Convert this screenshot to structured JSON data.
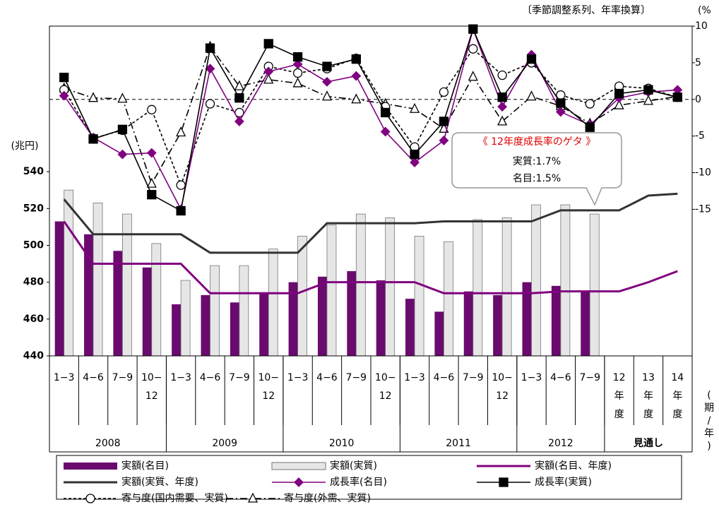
{
  "chart_data": {
    "type": "combo",
    "title": "〔季節調整系列、年率換算〕",
    "y_label": "(兆円)",
    "y2_label": "(%",
    "x_label": "(期/年)",
    "categories": [
      "1−3",
      "4−6",
      "7−9",
      "10−12",
      "1−3",
      "4−6",
      "7−9",
      "10−12",
      "1−3",
      "4−6",
      "7−9",
      "10−12",
      "1−3",
      "4−6",
      "7−9",
      "10−12",
      "1−3",
      "4−6",
      "7−9",
      "12年度",
      "13年度",
      "14年度"
    ],
    "groups": [
      {
        "label": "2008",
        "size": 4
      },
      {
        "label": "2009",
        "size": 4
      },
      {
        "label": "2010",
        "size": 4
      },
      {
        "label": "2011",
        "size": 4
      },
      {
        "label": "2012",
        "size": 3
      },
      {
        "label": "見通し",
        "size": 3
      }
    ],
    "ylim": [
      440,
      619
    ],
    "yticks": [
      440,
      460,
      480,
      500,
      520,
      540
    ],
    "y2lim": [
      -35,
      10
    ],
    "y2ticks": [
      10,
      5,
      0,
      -5,
      -10,
      -15
    ],
    "series": [
      {
        "name": "実額(名目)",
        "kind": "bar",
        "color": "#6a0a6e",
        "values": [
          513,
          506,
          497,
          488,
          468,
          473,
          469,
          474,
          480,
          483,
          486,
          481,
          471,
          464,
          475,
          473,
          480,
          478,
          475,
          null,
          null,
          null
        ]
      },
      {
        "name": "実額(実質)",
        "kind": "bar",
        "color": "#e6e6e6",
        "values": [
          530,
          523,
          517,
          501,
          481,
          489,
          489,
          498,
          505,
          511,
          517,
          515,
          505,
          502,
          514,
          515,
          522,
          522,
          517,
          null,
          null,
          null
        ]
      },
      {
        "name": "実額(名目、年度)",
        "kind": "line",
        "color": "#800080",
        "values": [
          513,
          490,
          490,
          490,
          490,
          474,
          474,
          474,
          474,
          480,
          480,
          480,
          480,
          474,
          474,
          474,
          474,
          475,
          475,
          475,
          480,
          486
        ]
      },
      {
        "name": "実額(実質、年度)",
        "kind": "line",
        "color": "#333333",
        "values": [
          525,
          506,
          506,
          506,
          506,
          496,
          496,
          496,
          496,
          512,
          512,
          512,
          512,
          513,
          513,
          513,
          513,
          519,
          519,
          519,
          527,
          528
        ]
      },
      {
        "name": "成長率(名目)",
        "kind": "line",
        "axis": "y2",
        "marker": "diamond",
        "color": "#800080",
        "values": [
          0.5,
          -5.2,
          -7.5,
          -7.3,
          -15,
          4.2,
          -3,
          3.8,
          4.8,
          2.4,
          3.2,
          -4.4,
          -8.6,
          -5.6,
          9.6,
          -1,
          6.1,
          -1.7,
          -3.5,
          0.2,
          1,
          1.3
        ]
      },
      {
        "name": "成長率(実質)",
        "kind": "line",
        "axis": "y2",
        "marker": "square",
        "color": "#000000",
        "values": [
          3,
          -5.4,
          -4.1,
          -13,
          -15.2,
          7,
          0.2,
          7.6,
          5.8,
          4.5,
          5.5,
          -1.8,
          -7.5,
          -3,
          9.6,
          0.3,
          5.5,
          -0.5,
          -3.8,
          0.8,
          1.3,
          0.3
        ]
      },
      {
        "name": "寄与度(国内需要、実質)",
        "kind": "line",
        "axis": "y2",
        "marker": "circle",
        "dash": "4 3",
        "color": "#000000",
        "values": [
          1.3,
          -5.3,
          -4.2,
          -1.4,
          -11.7,
          -0.6,
          -1.8,
          4.5,
          3.6,
          4.2,
          5.6,
          -1,
          -6.5,
          1,
          6.9,
          3.3,
          5,
          0.6,
          -0.6,
          1.8,
          1.5,
          0.3
        ]
      },
      {
        "name": "寄与度(外需、実質)",
        "kind": "line",
        "axis": "y2",
        "marker": "triangle",
        "dash": "10 4 2 4",
        "color": "#000000",
        "values": [
          1.5,
          0.2,
          0.1,
          -11.5,
          -4.5,
          7.2,
          1.8,
          2.7,
          2.2,
          0.4,
          0,
          -0.6,
          -1.3,
          -4,
          3.1,
          -3,
          0.4,
          -0.9,
          -3.3,
          -0.8,
          -0.2,
          0.4
        ]
      }
    ],
    "annotation": {
      "title": "《 12年度成長率のゲタ 》",
      "lines": [
        "実質:1.7%",
        "名目:1.5%"
      ]
    }
  }
}
